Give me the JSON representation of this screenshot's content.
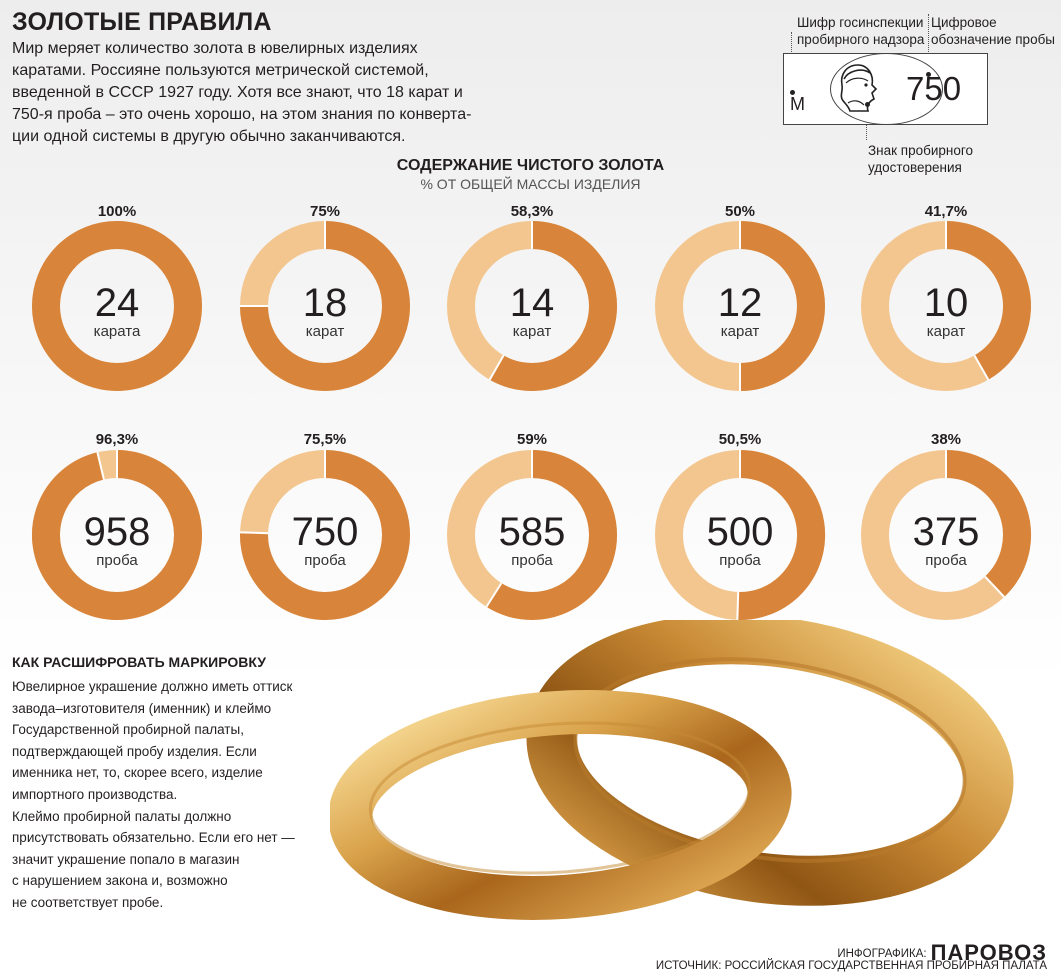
{
  "header": {
    "title": "ЗОЛОТЫЕ ПРАВИЛА",
    "intro_lines": [
      "Мир меряет количество золота в ювелирных изделиях",
      "каратами. Россияне пользуются метрической системой,",
      "введенной в СССР 1927 году. Хотя все знают, что 18 карат и",
      "750-я проба – это очень хорошо, на этом знания по конверта-",
      "ции одной системы в другую обычно заканчиваются."
    ]
  },
  "stamp": {
    "label_cipher": [
      "Шифр госинспекции",
      "пробирного надзора"
    ],
    "label_digital": [
      "Цифровое",
      "обозначение пробы"
    ],
    "label_sign": [
      "Знак пробирного",
      "удостоверения"
    ],
    "letter": "М",
    "number": "750"
  },
  "colors": {
    "fill": "#d8843a",
    "rest": "#f3c690",
    "text": "#231f20"
  },
  "chart_data": [
    {
      "type": "pie",
      "title": "СОДЕРЖАНИЕ ЧИСТОГО ЗОЛОТА",
      "subtitle": "% ОТ ОБЩЕЙ МАССЫ ИЗДЕЛИЯ",
      "categories": [
        "24 карата",
        "18 карат",
        "14 карат",
        "12 карат",
        "10 карат"
      ],
      "values": [
        100,
        75,
        58.3,
        50,
        41.7
      ],
      "labels": [
        "100%",
        "75%",
        "58,3%",
        "50%",
        "41,7%"
      ],
      "centers": [
        "24",
        "18",
        "14",
        "12",
        "10"
      ],
      "units": [
        "карата",
        "карат",
        "карат",
        "карат",
        "карат"
      ]
    },
    {
      "type": "pie",
      "categories": [
        "958 проба",
        "750 проба",
        "585 проба",
        "500 проба",
        "375 проба"
      ],
      "values": [
        96.3,
        75.5,
        59,
        50.5,
        38
      ],
      "labels": [
        "96,3%",
        "75,5%",
        "59%",
        "50,5%",
        "38%"
      ],
      "centers": [
        "958",
        "750",
        "585",
        "500",
        "375"
      ],
      "units": [
        "проба",
        "проба",
        "проба",
        "проба",
        "проба"
      ]
    }
  ],
  "howto": {
    "title": "КАК РАСШИФРОВАТЬ МАРКИРОВКУ",
    "lines": [
      "Ювелирное украшение должно иметь оттиск",
      "завода–изготовителя (именник) и клеймо",
      "Государственной пробирной палаты,",
      "подтверждающей пробу изделия. Если",
      "именника нет, то, скорее всего, изделие",
      "импортного производства.",
      "Клеймо пробирной палаты должно",
      "присутствовать обязательно. Если его нет —",
      "значит украшение попало в магазин",
      "с нарушением закона и, возможно",
      "не соответствует пробе."
    ]
  },
  "footer": {
    "infographic_label": "ИНФОГРАФИКА:",
    "brand": "ПАРОВОЗ",
    "source": "ИСТОЧНИК: РОССИЙСКАЯ ГОСУДАРСТВЕННАЯ ПРОБИРНАЯ ПАЛАТА"
  }
}
